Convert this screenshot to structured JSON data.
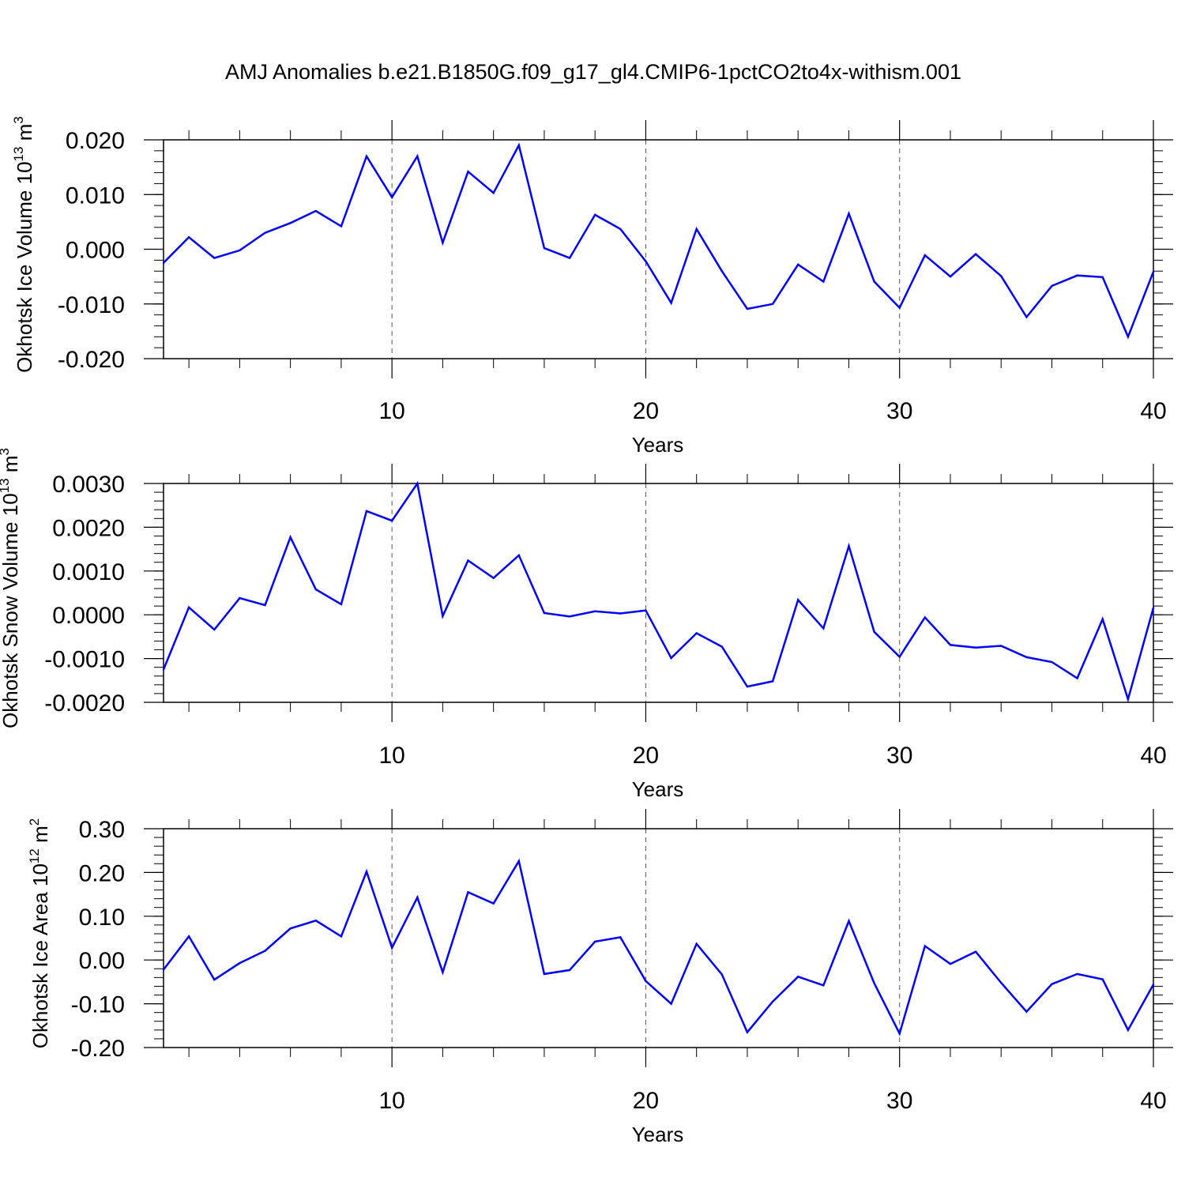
{
  "title": "AMJ Anomalies b.e21.B1850G.f09_g17_gl4.CMIP6-1pctCO2to4x-withism.001",
  "colors": {
    "series": "#0000ff",
    "axis": "#000000",
    "grid": "#555555",
    "background": "#ffffff"
  },
  "chart_data": [
    {
      "type": "line",
      "xlabel": "Years",
      "ylabel": {
        "prefix": "Okhotsk Ice Volume 10",
        "exponent": "13",
        "unit": " m",
        "unit_exponent": "3"
      },
      "xlim": [
        1,
        40
      ],
      "ylim": [
        -0.02,
        0.02
      ],
      "x_ticks": [
        10,
        20,
        30,
        40
      ],
      "y_ticks": [
        -0.02,
        -0.01,
        0.0,
        0.01,
        0.02
      ],
      "y_tick_labels": [
        "-0.020",
        "-0.010",
        "0.000",
        "0.010",
        "0.020"
      ],
      "y_minor_step": 0.002,
      "x_minor_step": 2,
      "grid": "dashed vertical at 10, 20, 30",
      "x": [
        1,
        2,
        3,
        4,
        5,
        6,
        7,
        8,
        9,
        10,
        11,
        12,
        13,
        14,
        15,
        16,
        17,
        18,
        19,
        20,
        21,
        22,
        23,
        24,
        25,
        26,
        27,
        28,
        29,
        30,
        31,
        32,
        33,
        34,
        35,
        36,
        37,
        38,
        39,
        40
      ],
      "values": [
        -0.0025,
        0.0022,
        -0.0016,
        -0.0002,
        0.003,
        0.0048,
        0.007,
        0.0042,
        0.017,
        0.0095,
        0.017,
        0.0012,
        0.0142,
        0.0103,
        0.019,
        0.0002,
        -0.0016,
        0.0063,
        0.0037,
        -0.0022,
        -0.0098,
        0.0037,
        -0.004,
        -0.0109,
        -0.01,
        -0.0028,
        -0.0059,
        0.0065,
        -0.0059,
        -0.0107,
        -0.0011,
        -0.005,
        -0.0009,
        -0.0049,
        -0.0124,
        -0.0067,
        -0.0048,
        -0.0051,
        -0.016,
        -0.0041
      ]
    },
    {
      "type": "line",
      "xlabel": "Years",
      "ylabel": {
        "prefix": "Okhotsk Snow Volume 10",
        "exponent": "13",
        "unit": " m",
        "unit_exponent": "3"
      },
      "xlim": [
        1,
        40
      ],
      "ylim": [
        -0.002,
        0.003
      ],
      "x_ticks": [
        10,
        20,
        30,
        40
      ],
      "y_ticks": [
        -0.002,
        -0.001,
        0.0,
        0.001,
        0.002,
        0.003
      ],
      "y_tick_labels": [
        "-0.0020",
        "-0.0010",
        "0.0000",
        "0.0010",
        "0.0020",
        "0.0030"
      ],
      "y_minor_step": 0.0002,
      "x_minor_step": 2,
      "grid": "dashed vertical at 10, 20, 30",
      "x": [
        1,
        2,
        3,
        4,
        5,
        6,
        7,
        8,
        9,
        10,
        11,
        12,
        13,
        14,
        15,
        16,
        17,
        18,
        19,
        20,
        21,
        22,
        23,
        24,
        25,
        26,
        27,
        28,
        29,
        30,
        31,
        32,
        33,
        34,
        35,
        36,
        37,
        38,
        39,
        40
      ],
      "values": [
        -0.00125,
        0.00017,
        -0.00034,
        0.00038,
        0.00022,
        0.00177,
        0.00058,
        0.00024,
        0.00237,
        0.00215,
        0.003,
        -3e-05,
        0.00124,
        0.00084,
        0.00136,
        4e-05,
        -4e-05,
        8e-05,
        3e-05,
        0.0001,
        -0.00099,
        -0.00042,
        -0.00073,
        -0.00164,
        -0.00152,
        0.00034,
        -0.00031,
        0.00157,
        -0.00039,
        -0.00096,
        -6e-05,
        -0.00069,
        -0.00075,
        -0.00071,
        -0.00097,
        -0.00108,
        -0.00145,
        -0.0001,
        -0.00193,
        0.00016
      ]
    },
    {
      "type": "line",
      "xlabel": "Years",
      "ylabel": {
        "prefix": "Okhotsk Ice Area 10",
        "exponent": "12",
        "unit": " m",
        "unit_exponent": "2"
      },
      "xlim": [
        1,
        40
      ],
      "ylim": [
        -0.2,
        0.3
      ],
      "x_ticks": [
        10,
        20,
        30,
        40
      ],
      "y_ticks": [
        -0.2,
        -0.1,
        0.0,
        0.1,
        0.2,
        0.3
      ],
      "y_tick_labels": [
        "-0.20",
        "-0.10",
        "0.00",
        "0.10",
        "0.20",
        "0.30"
      ],
      "y_minor_step": 0.02,
      "x_minor_step": 2,
      "grid": "dashed vertical at 10, 20, 30",
      "x": [
        1,
        2,
        3,
        4,
        5,
        6,
        7,
        8,
        9,
        10,
        11,
        12,
        13,
        14,
        15,
        16,
        17,
        18,
        19,
        20,
        21,
        22,
        23,
        24,
        25,
        26,
        27,
        28,
        29,
        30,
        31,
        32,
        33,
        34,
        35,
        36,
        37,
        38,
        39,
        40
      ],
      "values": [
        -0.022,
        0.054,
        -0.045,
        -0.007,
        0.021,
        0.072,
        0.09,
        0.054,
        0.202,
        0.028,
        0.143,
        -0.028,
        0.155,
        0.129,
        0.226,
        -0.032,
        -0.023,
        0.042,
        0.052,
        -0.048,
        -0.1,
        0.037,
        -0.033,
        -0.165,
        -0.095,
        -0.038,
        -0.058,
        0.089,
        -0.053,
        -0.168,
        0.032,
        -0.009,
        0.019,
        -0.052,
        -0.118,
        -0.055,
        -0.032,
        -0.044,
        -0.16,
        -0.056
      ]
    }
  ]
}
